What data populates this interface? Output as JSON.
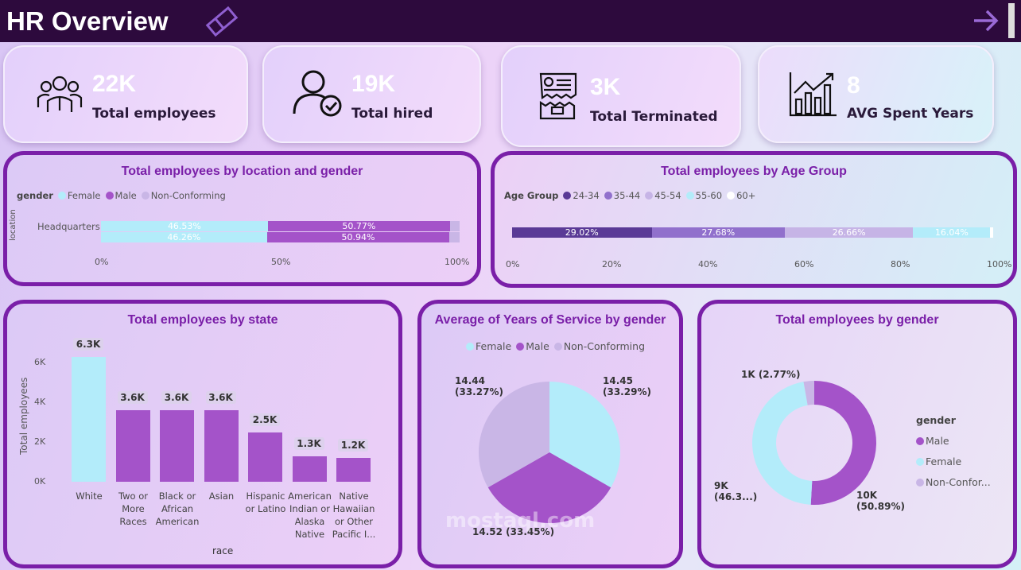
{
  "header": {
    "title": "HR Overview",
    "eraser_icon": "eraser-icon",
    "next_icon": "arrow-right-icon"
  },
  "kpis": [
    {
      "value": "22K",
      "label": "Total employees",
      "icon": "people-group-icon"
    },
    {
      "value": "19K",
      "label": "Total hired",
      "icon": "user-check-icon"
    },
    {
      "value": "3K",
      "label": "Total Terminated",
      "icon": "torn-document-icon"
    },
    {
      "value": "8",
      "label": "AVG Spent Years",
      "icon": "growth-chart-icon"
    }
  ],
  "colors": {
    "female": "#b3ecfa",
    "male": "#a453c9",
    "non_conforming": "#c9b6e6",
    "age_24_34": "#5a3a96",
    "age_35_44": "#9170cc",
    "age_45_54": "#c6b4e6",
    "age_55_60": "#b3ecfa",
    "age_60_plus": "#ffffff",
    "accent": "#7a1fa8"
  },
  "chart_data": [
    {
      "type": "bar",
      "orientation": "horizontal-100%-stacked",
      "title": "Total employees by location and gender",
      "legend_title": "gender",
      "legend": [
        "Female",
        "Male",
        "Non-Conforming"
      ],
      "ylabel": "location",
      "categories": [
        "Headquarters"
      ],
      "rows": [
        {
          "Female": 46.53,
          "Male": 50.77,
          "Non-Conforming": 2.7
        },
        {
          "Female": 46.26,
          "Male": 50.94,
          "Non-Conforming": 2.8
        }
      ],
      "labels": [
        [
          "46.53%",
          "50.77%"
        ],
        [
          "46.26%",
          "50.94%"
        ]
      ],
      "xticks": [
        "0%",
        "50%",
        "100%"
      ]
    },
    {
      "type": "bar",
      "orientation": "horizontal-100%-stacked",
      "title": "Total employees by Age Group",
      "legend_title": "Age Group",
      "legend": [
        "24-34",
        "35-44",
        "45-54",
        "55-60",
        "60+"
      ],
      "values": [
        29.02,
        27.68,
        26.66,
        16.04,
        0.6
      ],
      "labels": [
        "29.02%",
        "27.68%",
        "26.66%",
        "16.04%",
        ""
      ],
      "xticks": [
        "0%",
        "20%",
        "40%",
        "60%",
        "80%",
        "100%"
      ]
    },
    {
      "type": "bar",
      "title": "Total employees by state",
      "xlabel": "race",
      "ylabel": "Total employees",
      "categories": [
        "White",
        "Two or More Races",
        "Black or African American",
        "Asian",
        "Hispanic or Latino",
        "American Indian or Alaska Native",
        "Native Hawaiian or Other Pacific I..."
      ],
      "values": [
        6.3,
        3.6,
        3.6,
        3.6,
        2.5,
        1.3,
        1.2
      ],
      "labels": [
        "6.3K",
        "3.6K",
        "3.6K",
        "3.6K",
        "2.5K",
        "1.3K",
        "1.2K"
      ],
      "yticks": [
        "0K",
        "2K",
        "4K",
        "6K"
      ],
      "ylim": [
        0,
        7
      ]
    },
    {
      "type": "pie",
      "title": "Average of Years of Service by gender",
      "legend": [
        "Female",
        "Male",
        "Non-Conforming"
      ],
      "values": [
        14.45,
        14.52,
        14.44
      ],
      "labels": [
        {
          "text": "14.45",
          "pct": "(33.29%)"
        },
        {
          "text": "14.52 (33.45%)",
          "pct": ""
        },
        {
          "text": "14.44",
          "pct": "(33.27%)"
        }
      ]
    },
    {
      "type": "pie",
      "donut": true,
      "title": "Total employees by gender",
      "legend_title": "gender",
      "legend": [
        "Male",
        "Female",
        "Non-Confor..."
      ],
      "values": [
        50.89,
        46.34,
        2.77
      ],
      "labels": [
        {
          "text": "10K",
          "pct": "(50.89%)"
        },
        {
          "text": "9K",
          "pct": "(46.3...)"
        },
        {
          "text": "1K (2.77%)",
          "pct": ""
        }
      ]
    }
  ],
  "watermark": "mostaql.com"
}
